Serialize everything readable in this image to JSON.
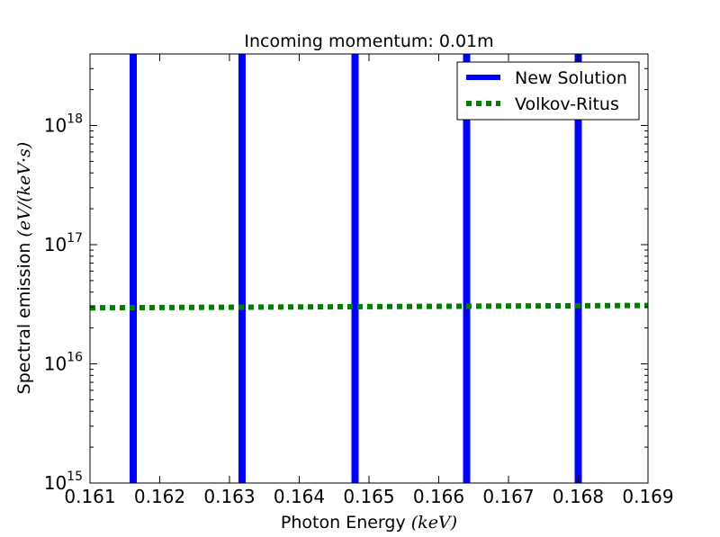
{
  "chart_data": {
    "type": "line",
    "title": "Incoming momentum: 0.01m",
    "xlabel": "Photon Energy",
    "xlabel_unit": "(keV)",
    "ylabel": "Spectral emission",
    "ylabel_unit": "(eV/(keV·s)",
    "yscale": "log",
    "xlim": [
      0.161,
      0.169
    ],
    "ylim_exp": [
      15,
      18.6
    ],
    "x_ticks": [
      "0.161",
      "0.162",
      "0.163",
      "0.164",
      "0.165",
      "0.166",
      "0.167",
      "0.168",
      "0.169"
    ],
    "y_ticks": [
      {
        "base": "10",
        "exp": "15"
      },
      {
        "base": "10",
        "exp": "16"
      },
      {
        "base": "10",
        "exp": "17"
      },
      {
        "base": "10",
        "exp": "18"
      }
    ],
    "grid": false,
    "legend_position": "top-right",
    "series": [
      {
        "name": "New Solution",
        "color": "#0000ff",
        "style": "solid",
        "spikes_x": [
          0.16162,
          0.16318,
          0.1648,
          0.1664,
          0.168
        ]
      },
      {
        "name": "Volkov-Ritus",
        "color": "#008000",
        "style": "dotted",
        "x": [
          0.161,
          0.169
        ],
        "y_exp": [
          16.47,
          16.49
        ]
      }
    ]
  }
}
